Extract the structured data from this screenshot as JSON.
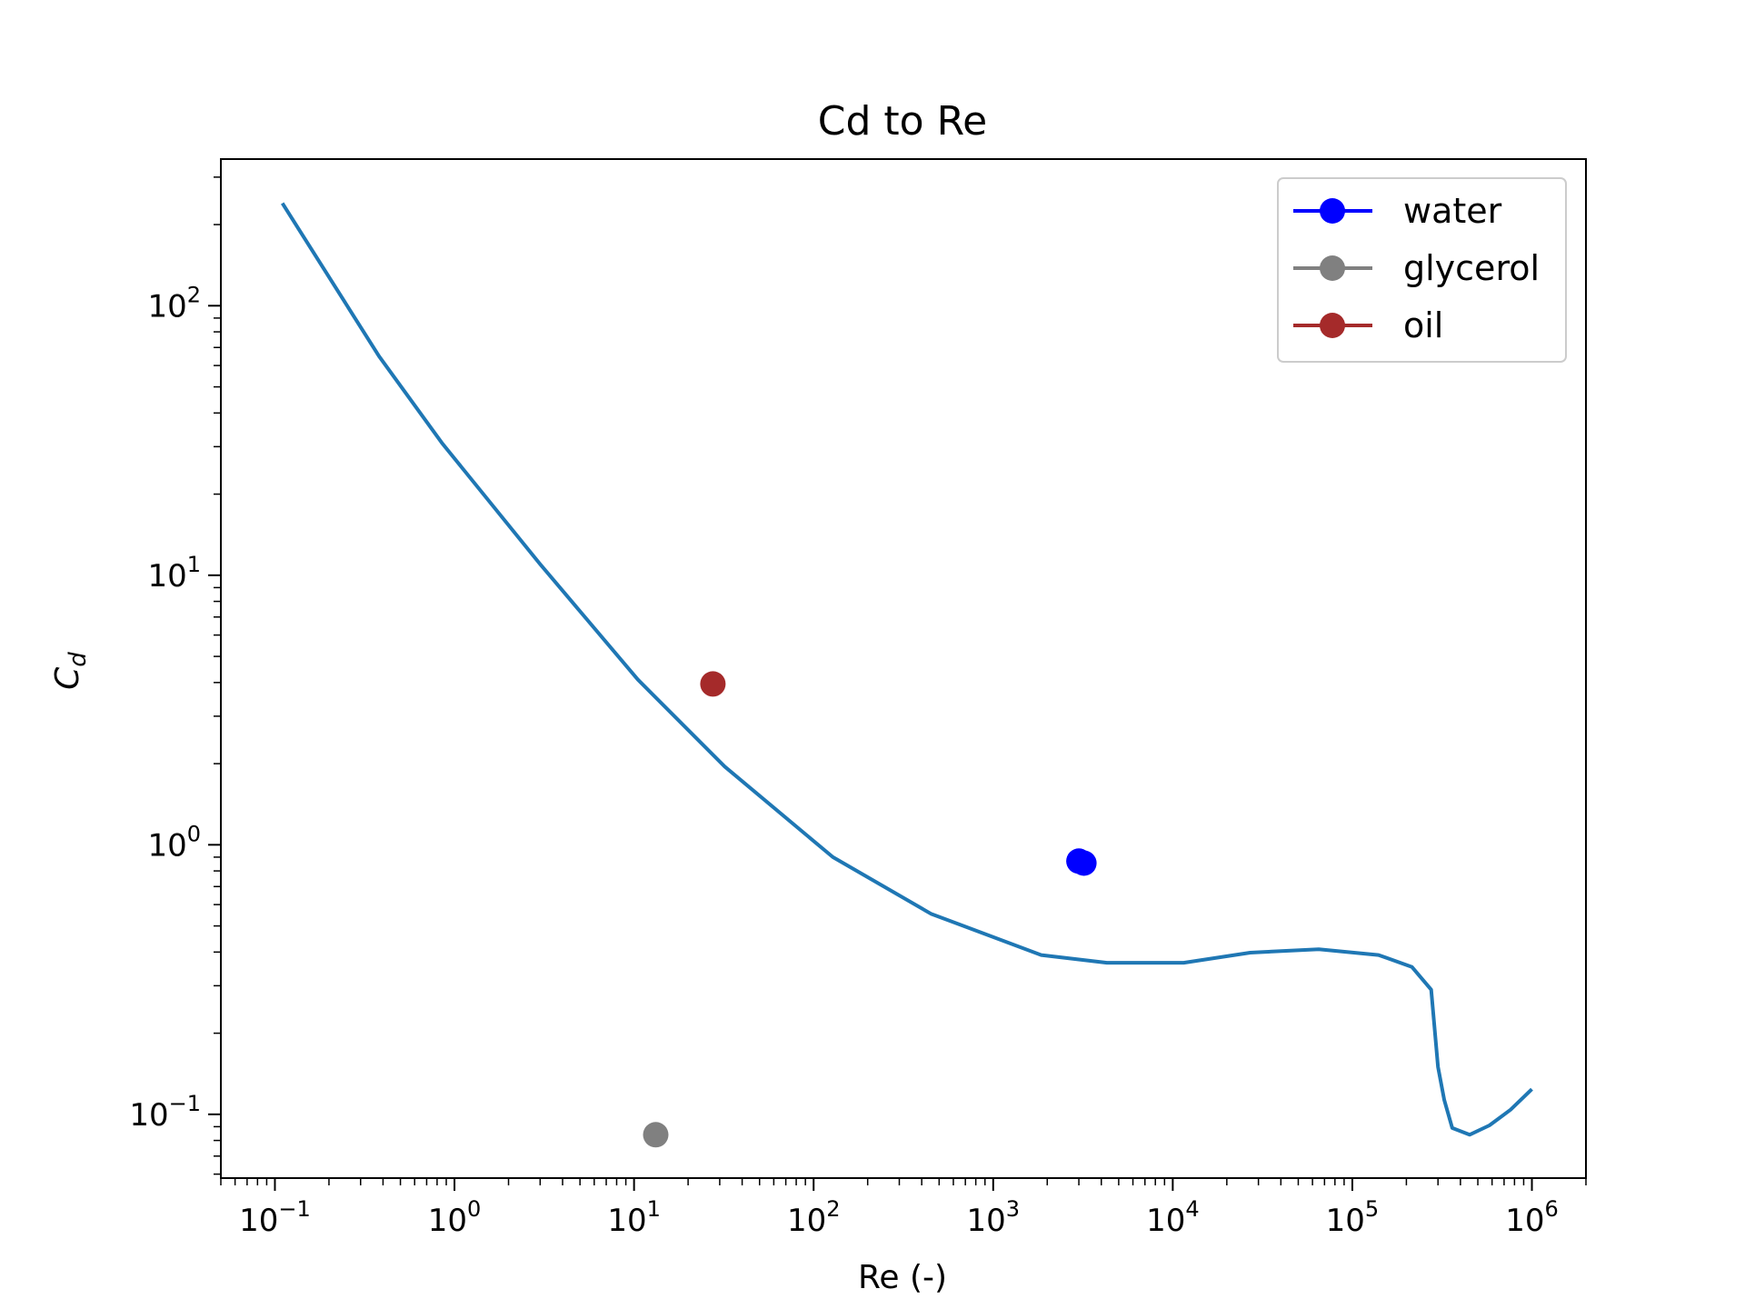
{
  "chart_data": {
    "type": "line",
    "title": "Cd to Re",
    "xlabel": "Re (-)",
    "ylabel": "C",
    "ylabel_sub": "d",
    "xscale": "log",
    "yscale": "log",
    "xlim": [
      0.05,
      2000000
    ],
    "ylim": [
      0.058,
      350
    ],
    "xticks": [
      {
        "base": "10",
        "exp": "−1",
        "value": 0.1
      },
      {
        "base": "10",
        "exp": "0",
        "value": 1
      },
      {
        "base": "10",
        "exp": "1",
        "value": 10
      },
      {
        "base": "10",
        "exp": "2",
        "value": 100
      },
      {
        "base": "10",
        "exp": "3",
        "value": 1000
      },
      {
        "base": "10",
        "exp": "4",
        "value": 10000
      },
      {
        "base": "10",
        "exp": "5",
        "value": 100000
      },
      {
        "base": "10",
        "exp": "6",
        "value": 1000000
      }
    ],
    "yticks": [
      {
        "base": "10",
        "exp": "−1",
        "value": 0.1
      },
      {
        "base": "10",
        "exp": "0",
        "value": 1
      },
      {
        "base": "10",
        "exp": "1",
        "value": 10
      },
      {
        "base": "10",
        "exp": "2",
        "value": 100
      }
    ],
    "grid": false,
    "legend_position": "top-right",
    "curve": {
      "color": "#1f77b4",
      "x": [
        0.11,
        0.38,
        0.85,
        3.0,
        10.5,
        32,
        128,
        450,
        1850,
        4300,
        11500,
        27000,
        65000,
        140000,
        215000,
        275000,
        300000,
        325000,
        360000,
        450000,
        580000,
        760000,
        1000000
      ],
      "y": [
        240,
        65,
        31,
        11,
        4.1,
        1.95,
        0.9,
        0.555,
        0.39,
        0.365,
        0.365,
        0.398,
        0.41,
        0.39,
        0.352,
        0.29,
        0.15,
        0.113,
        0.089,
        0.084,
        0.091,
        0.104,
        0.124
      ]
    },
    "series": [
      {
        "name": "water",
        "color": "#0000ff",
        "points": [
          [
            3000,
            0.87
          ],
          [
            3200,
            0.855
          ]
        ]
      },
      {
        "name": "glycerol",
        "color": "#808080",
        "points": [
          [
            13.2,
            0.084
          ]
        ]
      },
      {
        "name": "oil",
        "color": "#a52a2a",
        "points": [
          [
            27.5,
            3.95
          ]
        ]
      }
    ]
  }
}
